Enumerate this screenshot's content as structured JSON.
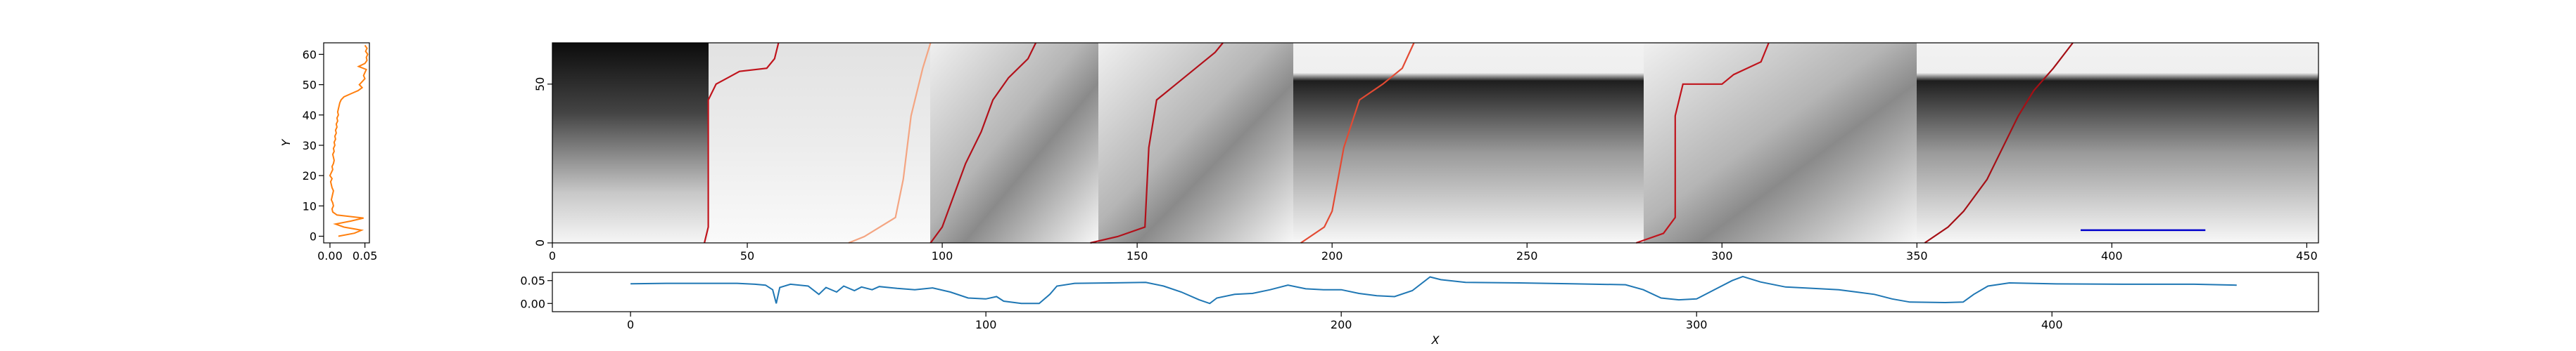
{
  "chart_data": [
    {
      "type": "line",
      "orientation": "horizontal",
      "ylabel": "Y",
      "xlim": [
        -0.009,
        0.0564
      ],
      "ylim": [
        -2.2,
        63.8
      ],
      "xticks": [
        {
          "value": 0,
          "label": "0.00"
        },
        {
          "value": 0.05,
          "label": "0.05"
        }
      ],
      "yticks": [
        0,
        10,
        20,
        30,
        40,
        50,
        60
      ],
      "series": [
        {
          "color": "#ff7f0e",
          "values": [
            0.012,
            0.035,
            0.045,
            0.02,
            0.008,
            0.03,
            0.048,
            0.01,
            0.004,
            0.003,
            0.005,
            0.004,
            0.002,
            0.003,
            0.004,
            0.005,
            0.003,
            0.002,
            0.001,
            0.003,
            0.0,
            0.002,
            0.004,
            0.003,
            0.005,
            0.006,
            0.005,
            0.004,
            0.006,
            0.005,
            0.007,
            0.006,
            0.008,
            0.007,
            0.009,
            0.008,
            0.01,
            0.009,
            0.011,
            0.01,
            0.012,
            0.011,
            0.012,
            0.013,
            0.014,
            0.016,
            0.02,
            0.03,
            0.04,
            0.046,
            0.042,
            0.046,
            0.05,
            0.048,
            0.05,
            0.052,
            0.041,
            0.05,
            0.053,
            0.052,
            0.054,
            0.051,
            0.053,
            0.05
          ]
        }
      ]
    },
    {
      "type": "heatmap",
      "xlim": [
        0,
        453
      ],
      "ylim": [
        0,
        63
      ],
      "xticks": [
        0,
        50,
        100,
        150,
        200,
        250,
        300,
        350,
        400,
        450
      ],
      "yticks": [
        0,
        50
      ],
      "paths": [
        {
          "color": "#c0141c",
          "x": [
            39,
            40,
            40,
            42,
            45,
            48,
            55,
            57,
            58
          ],
          "y": [
            0,
            5,
            45,
            50,
            52,
            54,
            55,
            58,
            63
          ]
        },
        {
          "color": "#f4a582",
          "x": [
            76,
            80,
            88,
            90,
            92,
            95,
            97
          ],
          "y": [
            0,
            2,
            8,
            20,
            40,
            55,
            63
          ]
        },
        {
          "color": "#b2101a",
          "x": [
            97,
            100,
            103,
            106,
            110,
            113,
            117,
            122,
            124
          ],
          "y": [
            0,
            5,
            15,
            25,
            35,
            45,
            52,
            58,
            63
          ]
        },
        {
          "color": "#b2101a",
          "x": [
            138,
            145,
            152,
            153,
            155,
            160,
            165,
            170,
            172
          ],
          "y": [
            0,
            2,
            5,
            30,
            45,
            50,
            55,
            60,
            63
          ]
        },
        {
          "color": "#e34a33",
          "x": [
            192,
            198,
            200,
            203,
            207,
            213,
            218,
            221
          ],
          "y": [
            0,
            5,
            10,
            30,
            45,
            50,
            55,
            63
          ]
        },
        {
          "color": "#c0141c",
          "x": [
            278,
            285,
            288,
            288,
            290,
            300,
            303,
            310,
            312
          ],
          "y": [
            0,
            3,
            8,
            40,
            50,
            50,
            53,
            57,
            63
          ]
        },
        {
          "color": "#a50f15",
          "x": [
            352,
            358,
            362,
            368,
            372,
            376,
            380,
            385,
            390
          ],
          "y": [
            0,
            5,
            10,
            20,
            30,
            40,
            48,
            55,
            63
          ]
        }
      ],
      "segment": {
        "color": "#0000cc",
        "x": [
          392,
          424
        ],
        "y": [
          4,
          4
        ]
      }
    },
    {
      "type": "line",
      "xlabel": "X",
      "xlim": [
        -22,
        475
      ],
      "ylim": [
        -0.018,
        0.068
      ],
      "xticks": [
        0,
        100,
        200,
        300,
        400
      ],
      "yticks": [
        {
          "value": 0,
          "label": "0.00"
        },
        {
          "value": 0.05,
          "label": "0.05"
        }
      ],
      "series": [
        {
          "color": "#1f77b4",
          "x": [
            0,
            10,
            20,
            30,
            35,
            38,
            40,
            41,
            42,
            45,
            50,
            53,
            55,
            58,
            60,
            63,
            65,
            68,
            70,
            75,
            80,
            85,
            90,
            95,
            100,
            103,
            105,
            110,
            115,
            118,
            120,
            125,
            135,
            145,
            150,
            155,
            160,
            163,
            165,
            170,
            175,
            180,
            185,
            190,
            195,
            200,
            205,
            210,
            215,
            220,
            225,
            228,
            235,
            250,
            265,
            280,
            285,
            290,
            295,
            300,
            305,
            310,
            313,
            318,
            325,
            335,
            340,
            345,
            350,
            355,
            360,
            370,
            375,
            378,
            382,
            388,
            400,
            420,
            440,
            452
          ],
          "values": [
            0.043,
            0.044,
            0.044,
            0.044,
            0.042,
            0.04,
            0.03,
            0.0,
            0.035,
            0.042,
            0.038,
            0.02,
            0.035,
            0.025,
            0.038,
            0.028,
            0.036,
            0.03,
            0.037,
            0.033,
            0.03,
            0.034,
            0.025,
            0.012,
            0.01,
            0.015,
            0.005,
            0.0,
            0.0,
            0.02,
            0.038,
            0.044,
            0.045,
            0.046,
            0.038,
            0.025,
            0.008,
            0.0,
            0.012,
            0.02,
            0.022,
            0.03,
            0.04,
            0.032,
            0.03,
            0.03,
            0.022,
            0.017,
            0.015,
            0.028,
            0.058,
            0.052,
            0.046,
            0.045,
            0.043,
            0.041,
            0.03,
            0.012,
            0.008,
            0.01,
            0.03,
            0.05,
            0.059,
            0.047,
            0.036,
            0.032,
            0.03,
            0.025,
            0.02,
            0.01,
            0.003,
            0.002,
            0.003,
            0.02,
            0.038,
            0.045,
            0.043,
            0.042,
            0.042,
            0.04
          ]
        }
      ]
    }
  ]
}
